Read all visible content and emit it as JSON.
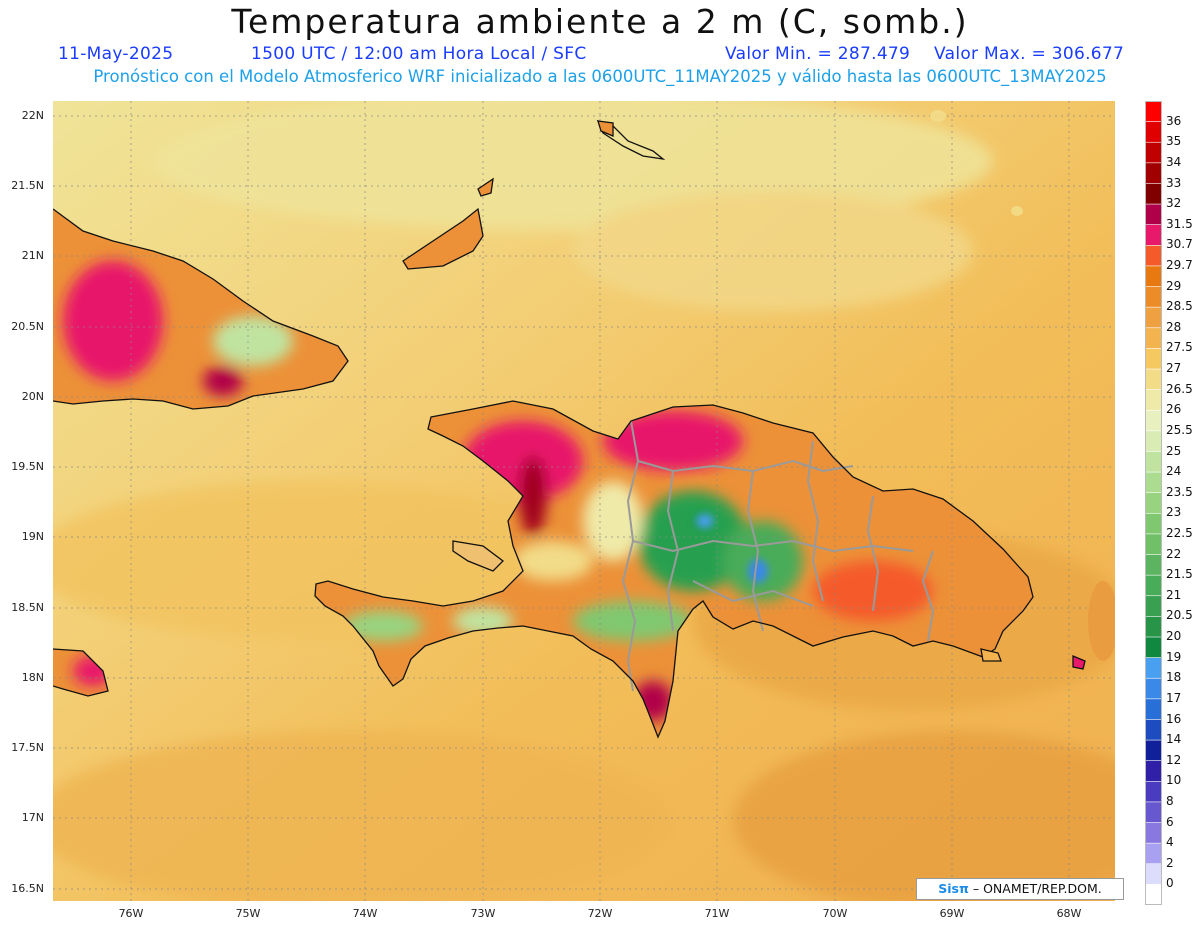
{
  "header": {
    "title": "Temperatura ambiente a 2 m (C, somb.)",
    "date": "11-May-2025",
    "time": "1500 UTC / 12:00 am Hora Local / SFC",
    "min_label": "Valor Min. = 287.479",
    "max_label": "Valor Max. = 306.677",
    "forecast_line": "Pronóstico con el Modelo Atmosferico WRF inicializado a las 0600UTC_11MAY2025 y válido hasta las  0600UTC_13MAY2025"
  },
  "axes": {
    "lat_labels": [
      "22N",
      "21.5N",
      "21N",
      "20.5N",
      "20N",
      "19.5N",
      "19N",
      "18.5N",
      "18N",
      "17.5N",
      "17N",
      "16.5N"
    ],
    "lon_labels": [
      "76W",
      "75W",
      "74W",
      "73W",
      "72W",
      "71W",
      "70W",
      "69W",
      "68W"
    ]
  },
  "colorbar": {
    "levels": [
      "36",
      "35",
      "34",
      "33",
      "32",
      "31.5",
      "30.7",
      "29.7",
      "29",
      "28.5",
      "28",
      "27.5",
      "27",
      "26.5",
      "26",
      "25.5",
      "25",
      "24",
      "23.5",
      "23",
      "22.5",
      "22",
      "21.5",
      "21",
      "20.5",
      "20",
      "19",
      "18",
      "17",
      "16",
      "14",
      "12",
      "10",
      "8",
      "6",
      "4",
      "2",
      "0"
    ],
    "colors": [
      "#ff0000",
      "#e00000",
      "#c00000",
      "#a00000",
      "#800000",
      "#b0004a",
      "#e8186a",
      "#f55a2a",
      "#e87810",
      "#ec8c28",
      "#efa040",
      "#f3b450",
      "#f5c860",
      "#f2dc88",
      "#efeaa8",
      "#e8f0c0",
      "#d8ecb4",
      "#c0e4a0",
      "#acdc90",
      "#98d480",
      "#80c870",
      "#70c068",
      "#5cb460",
      "#48ac58",
      "#38a050",
      "#289448",
      "#108840",
      "#4aa0f0",
      "#3a88e8",
      "#2870d8",
      "#1c4cc0",
      "#10209a",
      "#3020a8",
      "#4a3cc0",
      "#6858d0",
      "#8878e0",
      "#a8a0f0",
      "#dcdcfc",
      "#ffffff"
    ]
  },
  "credit": {
    "brand": "Sisπ",
    "text": "– ONAMET/REP.DOM."
  }
}
